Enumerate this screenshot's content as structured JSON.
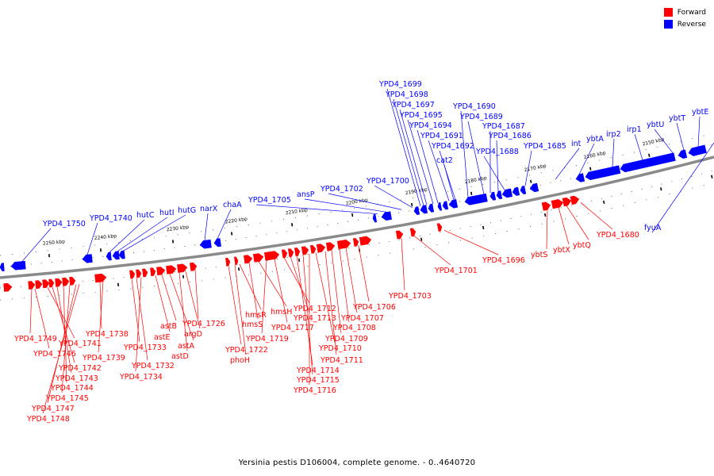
{
  "legend": {
    "forward_label": "Forward",
    "reverse_label": "Reverse",
    "forward_color": "#ff0000",
    "reverse_color": "#0000ff"
  },
  "caption": "Yersinia pestis D106004, complete genome. - 0..4640720",
  "scale_labels": [
    "2250 kbp",
    "2240 kbp",
    "2230 kbp",
    "2220 kbp",
    "2210 kbp",
    "2200 kbp",
    "2190 kbp",
    "2180 kbp",
    "2170 kbp",
    "2160 kbp",
    "2150 kbp"
  ],
  "reverse_genes": [
    "YPD4_1750",
    "YPD4_1740",
    "hutC",
    "hutI",
    "hutG",
    "narX",
    "chaA",
    "YPD4_1705",
    "ansP",
    "YPD4_1702",
    "YPD4_1700",
    "YPD4_1699",
    "YPD4_1698",
    "YPD4_1697",
    "YPD4_1695",
    "YPD4_1694",
    "YPD4_1691",
    "YPD4_1692",
    "cat2",
    "YPD4_1690",
    "YPD4_1689",
    "YPD4_1687",
    "YPD4_1686",
    "YPD4_1688",
    "YPD4_1685",
    "int",
    "ybtA",
    "irp2",
    "irp1",
    "ybtU",
    "ybtT",
    "ybtE",
    "fyuA"
  ],
  "forward_genes": [
    "YPD4_1749",
    "YPD4_1746",
    "YPD4_1741",
    "YPD4_1742",
    "YPD4_1743",
    "YPD4_1744",
    "YPD4_1745",
    "YPD4_1747",
    "YPD4_1748",
    "YPD4_1738",
    "YPD4_1739",
    "YPD4_1733",
    "YPD4_1732",
    "YPD4_1734",
    "astE",
    "astB",
    "astA",
    "astD",
    "argD",
    "YPD4_1726",
    "YPD4_1722",
    "phoH",
    "hmsR",
    "hmsS",
    "hmsH",
    "YPD4_1719",
    "YPD4_1717",
    "YPD4_1712",
    "YPD4_1713",
    "YPD4_1714",
    "YPD4_1715",
    "YPD4_1716",
    "YPD4_1710",
    "YPD4_1711",
    "YPD4_1709",
    "YPD4_1708",
    "YPD4_1707",
    "YPD4_1706",
    "YPD4_1703",
    "YPD4_1701",
    "YPD4_1696",
    "ybtS",
    "ybtX",
    "ybtQ",
    "YPD4_1680"
  ]
}
